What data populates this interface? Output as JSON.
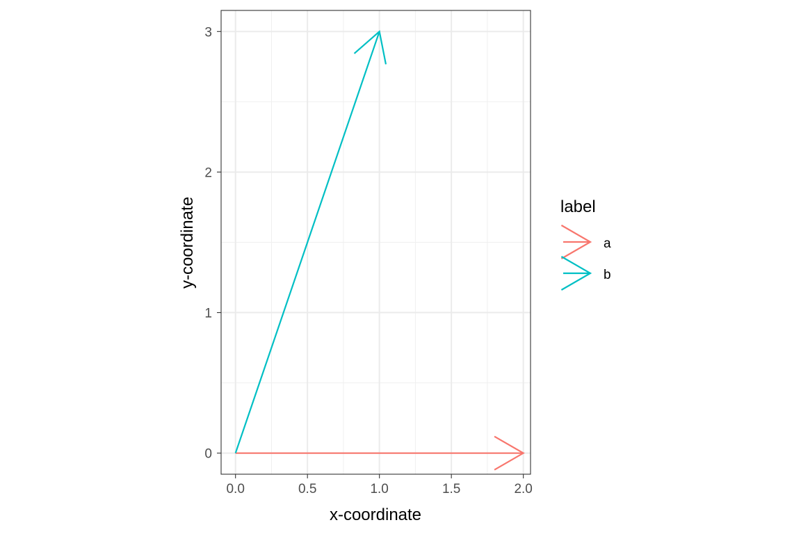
{
  "chart_data": {
    "type": "line",
    "xlabel": "x-coordinate",
    "ylabel": "y-coordinate",
    "xlim": [
      -0.1,
      2.05
    ],
    "ylim": [
      -0.15,
      3.15
    ],
    "x_ticks": [
      0.0,
      0.5,
      1.0,
      1.5,
      2.0
    ],
    "x_tick_labels": [
      "0.0",
      "0.5",
      "1.0",
      "1.5",
      "2.0"
    ],
    "y_ticks": [
      0,
      1,
      2,
      3
    ],
    "y_tick_labels": [
      "0",
      "1",
      "2",
      "3"
    ],
    "grid": true,
    "legend": {
      "title": "label",
      "position": "right"
    },
    "series": [
      {
        "name": "a",
        "color": "#F8766D",
        "x": [
          0,
          2
        ],
        "y": [
          0,
          0
        ],
        "arrow": "end"
      },
      {
        "name": "b",
        "color": "#00BFC4",
        "x": [
          0,
          1
        ],
        "y": [
          0,
          3
        ],
        "arrow": "end"
      }
    ]
  }
}
